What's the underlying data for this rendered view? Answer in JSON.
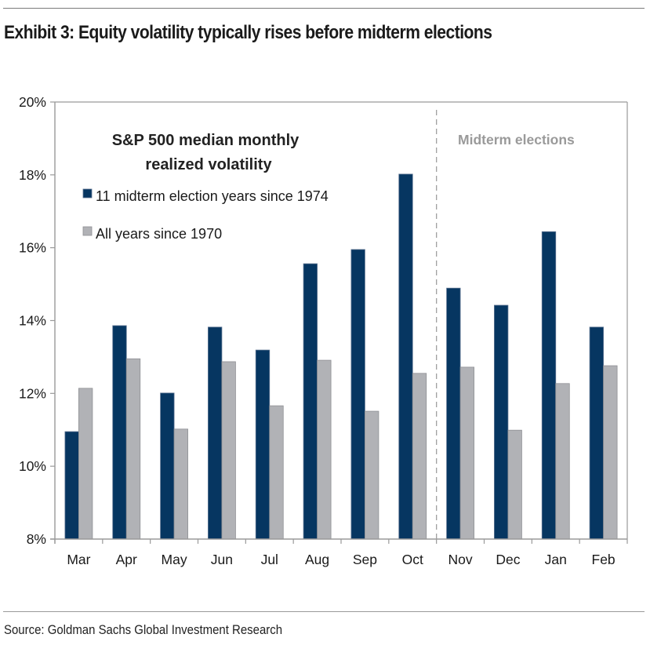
{
  "header": {
    "title": "Exhibit 3: Equity volatility typically rises before midterm elections"
  },
  "footer": {
    "source": "Source: Goldman Sachs Global Investment Research"
  },
  "colors": {
    "midterm": "#063661",
    "all_years": "#b1b2b6",
    "axis": "#9a9a9a",
    "annotation": "#9a9a9a"
  },
  "chart_data": {
    "type": "bar",
    "title": "S&P 500 median monthly realized volatility",
    "title_lines": [
      "S&P 500 median monthly",
      "realized volatility"
    ],
    "xlabel": "",
    "ylabel": "",
    "categories": [
      "Mar",
      "Apr",
      "May",
      "Jun",
      "Jul",
      "Aug",
      "Sep",
      "Oct",
      "Nov",
      "Dec",
      "Jan",
      "Feb"
    ],
    "series": [
      {
        "name": "11 midterm election years since 1974",
        "color": "#063661",
        "values": [
          10.95,
          13.86,
          12.01,
          13.82,
          13.19,
          15.56,
          15.95,
          18.02,
          14.89,
          14.42,
          16.44,
          13.82
        ]
      },
      {
        "name": "All years since 1970",
        "color": "#b1b2b6",
        "values": [
          12.14,
          12.95,
          11.02,
          12.87,
          11.66,
          12.91,
          11.51,
          12.55,
          12.72,
          10.99,
          12.27,
          12.76
        ]
      }
    ],
    "ylim": [
      8,
      20
    ],
    "yticks": [
      8,
      10,
      12,
      14,
      16,
      18,
      20
    ],
    "ytick_labels": [
      "8%",
      "10%",
      "12%",
      "14%",
      "16%",
      "18%",
      "20%"
    ],
    "grid": false,
    "legend_position": "top-left (inside plot)",
    "annotations": [
      {
        "text": "Midterm elections",
        "type": "dashed vertical divider",
        "between": [
          "Oct",
          "Nov"
        ]
      }
    ]
  }
}
